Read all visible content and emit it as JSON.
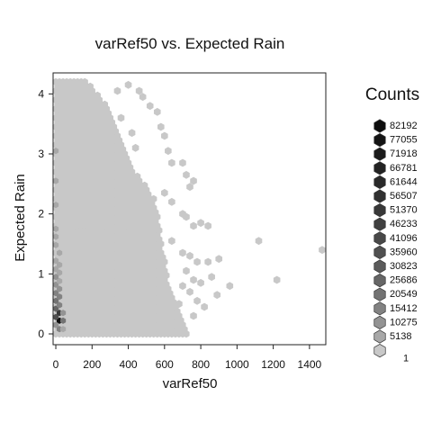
{
  "chart_data": {
    "type": "hexbin",
    "title": "varRef50 vs. Expected Rain",
    "xlabel": "varRef50",
    "ylabel": "Expected Rain",
    "xlim": [
      -15,
      1490
    ],
    "ylim": [
      -0.18,
      4.35
    ],
    "x_ticks": [
      0,
      200,
      400,
      600,
      800,
      1000,
      1200,
      1400
    ],
    "y_ticks": [
      0,
      1,
      2,
      3,
      4
    ],
    "bin_width": 20,
    "legend": {
      "title": "Counts",
      "placement": "right",
      "levels": [
        {
          "label": "82192",
          "color": "#0d0d0d"
        },
        {
          "label": "77055",
          "color": "#141414"
        },
        {
          "label": "71918",
          "color": "#1b1b1b"
        },
        {
          "label": "66781",
          "color": "#222222"
        },
        {
          "label": "61644",
          "color": "#292929"
        },
        {
          "label": "56507",
          "color": "#303030"
        },
        {
          "label": "51370",
          "color": "#383838"
        },
        {
          "label": "46233",
          "color": "#404040"
        },
        {
          "label": "41096",
          "color": "#484848"
        },
        {
          "label": "35960",
          "color": "#505050"
        },
        {
          "label": "30823",
          "color": "#5b5b5b"
        },
        {
          "label": "25686",
          "color": "#666666"
        },
        {
          "label": "20549",
          "color": "#737373"
        },
        {
          "label": "15412",
          "color": "#828282"
        },
        {
          "label": "10275",
          "color": "#939393"
        },
        {
          "label": "5138",
          "color": "#a8a8a8"
        },
        {
          "label": "1",
          "color": "#c8c8c8"
        }
      ]
    },
    "main_mass_boundary": [
      [
        0,
        4.25
      ],
      [
        80,
        4.25
      ],
      [
        120,
        4.25
      ],
      [
        160,
        4.22
      ],
      [
        200,
        4.1
      ],
      [
        240,
        4.0
      ],
      [
        260,
        3.9
      ],
      [
        290,
        3.75
      ],
      [
        320,
        3.55
      ],
      [
        345,
        3.3
      ],
      [
        375,
        3.05
      ],
      [
        400,
        2.9
      ],
      [
        430,
        2.7
      ],
      [
        450,
        2.65
      ],
      [
        480,
        2.55
      ],
      [
        500,
        2.45
      ],
      [
        520,
        2.35
      ],
      [
        540,
        2.25
      ],
      [
        560,
        2.0
      ],
      [
        570,
        1.8
      ],
      [
        580,
        1.55
      ],
      [
        590,
        1.3
      ],
      [
        600,
        1.2
      ],
      [
        610,
        1.05
      ],
      [
        620,
        0.85
      ],
      [
        640,
        0.6
      ],
      [
        660,
        0.45
      ],
      [
        680,
        0.3
      ],
      [
        700,
        0.15
      ],
      [
        720,
        0.0
      ]
    ],
    "outliers": [
      [
        400,
        4.15
      ],
      [
        460,
        4.05
      ],
      [
        480,
        3.95
      ],
      [
        520,
        3.8
      ],
      [
        560,
        3.7
      ],
      [
        580,
        3.45
      ],
      [
        600,
        3.3
      ],
      [
        620,
        3.05
      ],
      [
        640,
        2.85
      ],
      [
        700,
        2.85
      ],
      [
        720,
        2.65
      ],
      [
        760,
        2.55
      ],
      [
        740,
        2.45
      ],
      [
        600,
        2.35
      ],
      [
        640,
        2.2
      ],
      [
        700,
        2.0
      ],
      [
        720,
        1.95
      ],
      [
        760,
        1.8
      ],
      [
        800,
        1.85
      ],
      [
        840,
        1.8
      ],
      [
        1120,
        1.55
      ],
      [
        1470,
        1.4
      ],
      [
        640,
        1.55
      ],
      [
        700,
        1.35
      ],
      [
        740,
        1.3
      ],
      [
        780,
        1.2
      ],
      [
        840,
        1.2
      ],
      [
        900,
        1.25
      ],
      [
        720,
        1.05
      ],
      [
        760,
        0.9
      ],
      [
        800,
        0.85
      ],
      [
        860,
        0.95
      ],
      [
        960,
        0.8
      ],
      [
        1220,
        0.9
      ],
      [
        700,
        0.8
      ],
      [
        740,
        0.7
      ],
      [
        780,
        0.55
      ],
      [
        820,
        0.45
      ],
      [
        890,
        0.65
      ],
      [
        760,
        0.3
      ],
      [
        680,
        0.5
      ],
      [
        340,
        4.05
      ],
      [
        360,
        3.6
      ],
      [
        420,
        3.35
      ],
      [
        440,
        3.1
      ]
    ],
    "dense_cells": [
      {
        "x": 20,
        "y": 0.22,
        "level": 0
      },
      {
        "x": 20,
        "y": 0.35,
        "level": 6
      },
      {
        "x": 0,
        "y": 0.28,
        "level": 9
      },
      {
        "x": 40,
        "y": 0.22,
        "level": 12
      },
      {
        "x": 0,
        "y": 0.42,
        "level": 11
      },
      {
        "x": 20,
        "y": 0.48,
        "level": 13
      },
      {
        "x": 0,
        "y": 0.55,
        "level": 12
      },
      {
        "x": 40,
        "y": 0.35,
        "level": 14
      },
      {
        "x": 20,
        "y": 0.62,
        "level": 13
      },
      {
        "x": 0,
        "y": 0.68,
        "level": 13
      },
      {
        "x": 20,
        "y": 0.75,
        "level": 14
      },
      {
        "x": 0,
        "y": 0.82,
        "level": 14
      },
      {
        "x": 20,
        "y": 0.88,
        "level": 15
      },
      {
        "x": 0,
        "y": 0.95,
        "level": 14
      },
      {
        "x": 20,
        "y": 1.02,
        "level": 15
      },
      {
        "x": 0,
        "y": 1.08,
        "level": 15
      },
      {
        "x": 20,
        "y": 1.15,
        "level": 15
      },
      {
        "x": 0,
        "y": 1.22,
        "level": 15
      },
      {
        "x": 20,
        "y": 1.35,
        "level": 15
      },
      {
        "x": 0,
        "y": 1.48,
        "level": 15
      },
      {
        "x": 0,
        "y": 1.62,
        "level": 15
      },
      {
        "x": 0,
        "y": 1.75,
        "level": 15
      },
      {
        "x": 20,
        "y": 0.08,
        "level": 13
      },
      {
        "x": 0,
        "y": 0.15,
        "level": 14
      },
      {
        "x": 40,
        "y": 0.08,
        "level": 15
      },
      {
        "x": 0,
        "y": 2.15,
        "level": 15
      },
      {
        "x": 0,
        "y": 2.55,
        "level": 15
      },
      {
        "x": 0,
        "y": 3.05,
        "level": 15
      }
    ]
  }
}
